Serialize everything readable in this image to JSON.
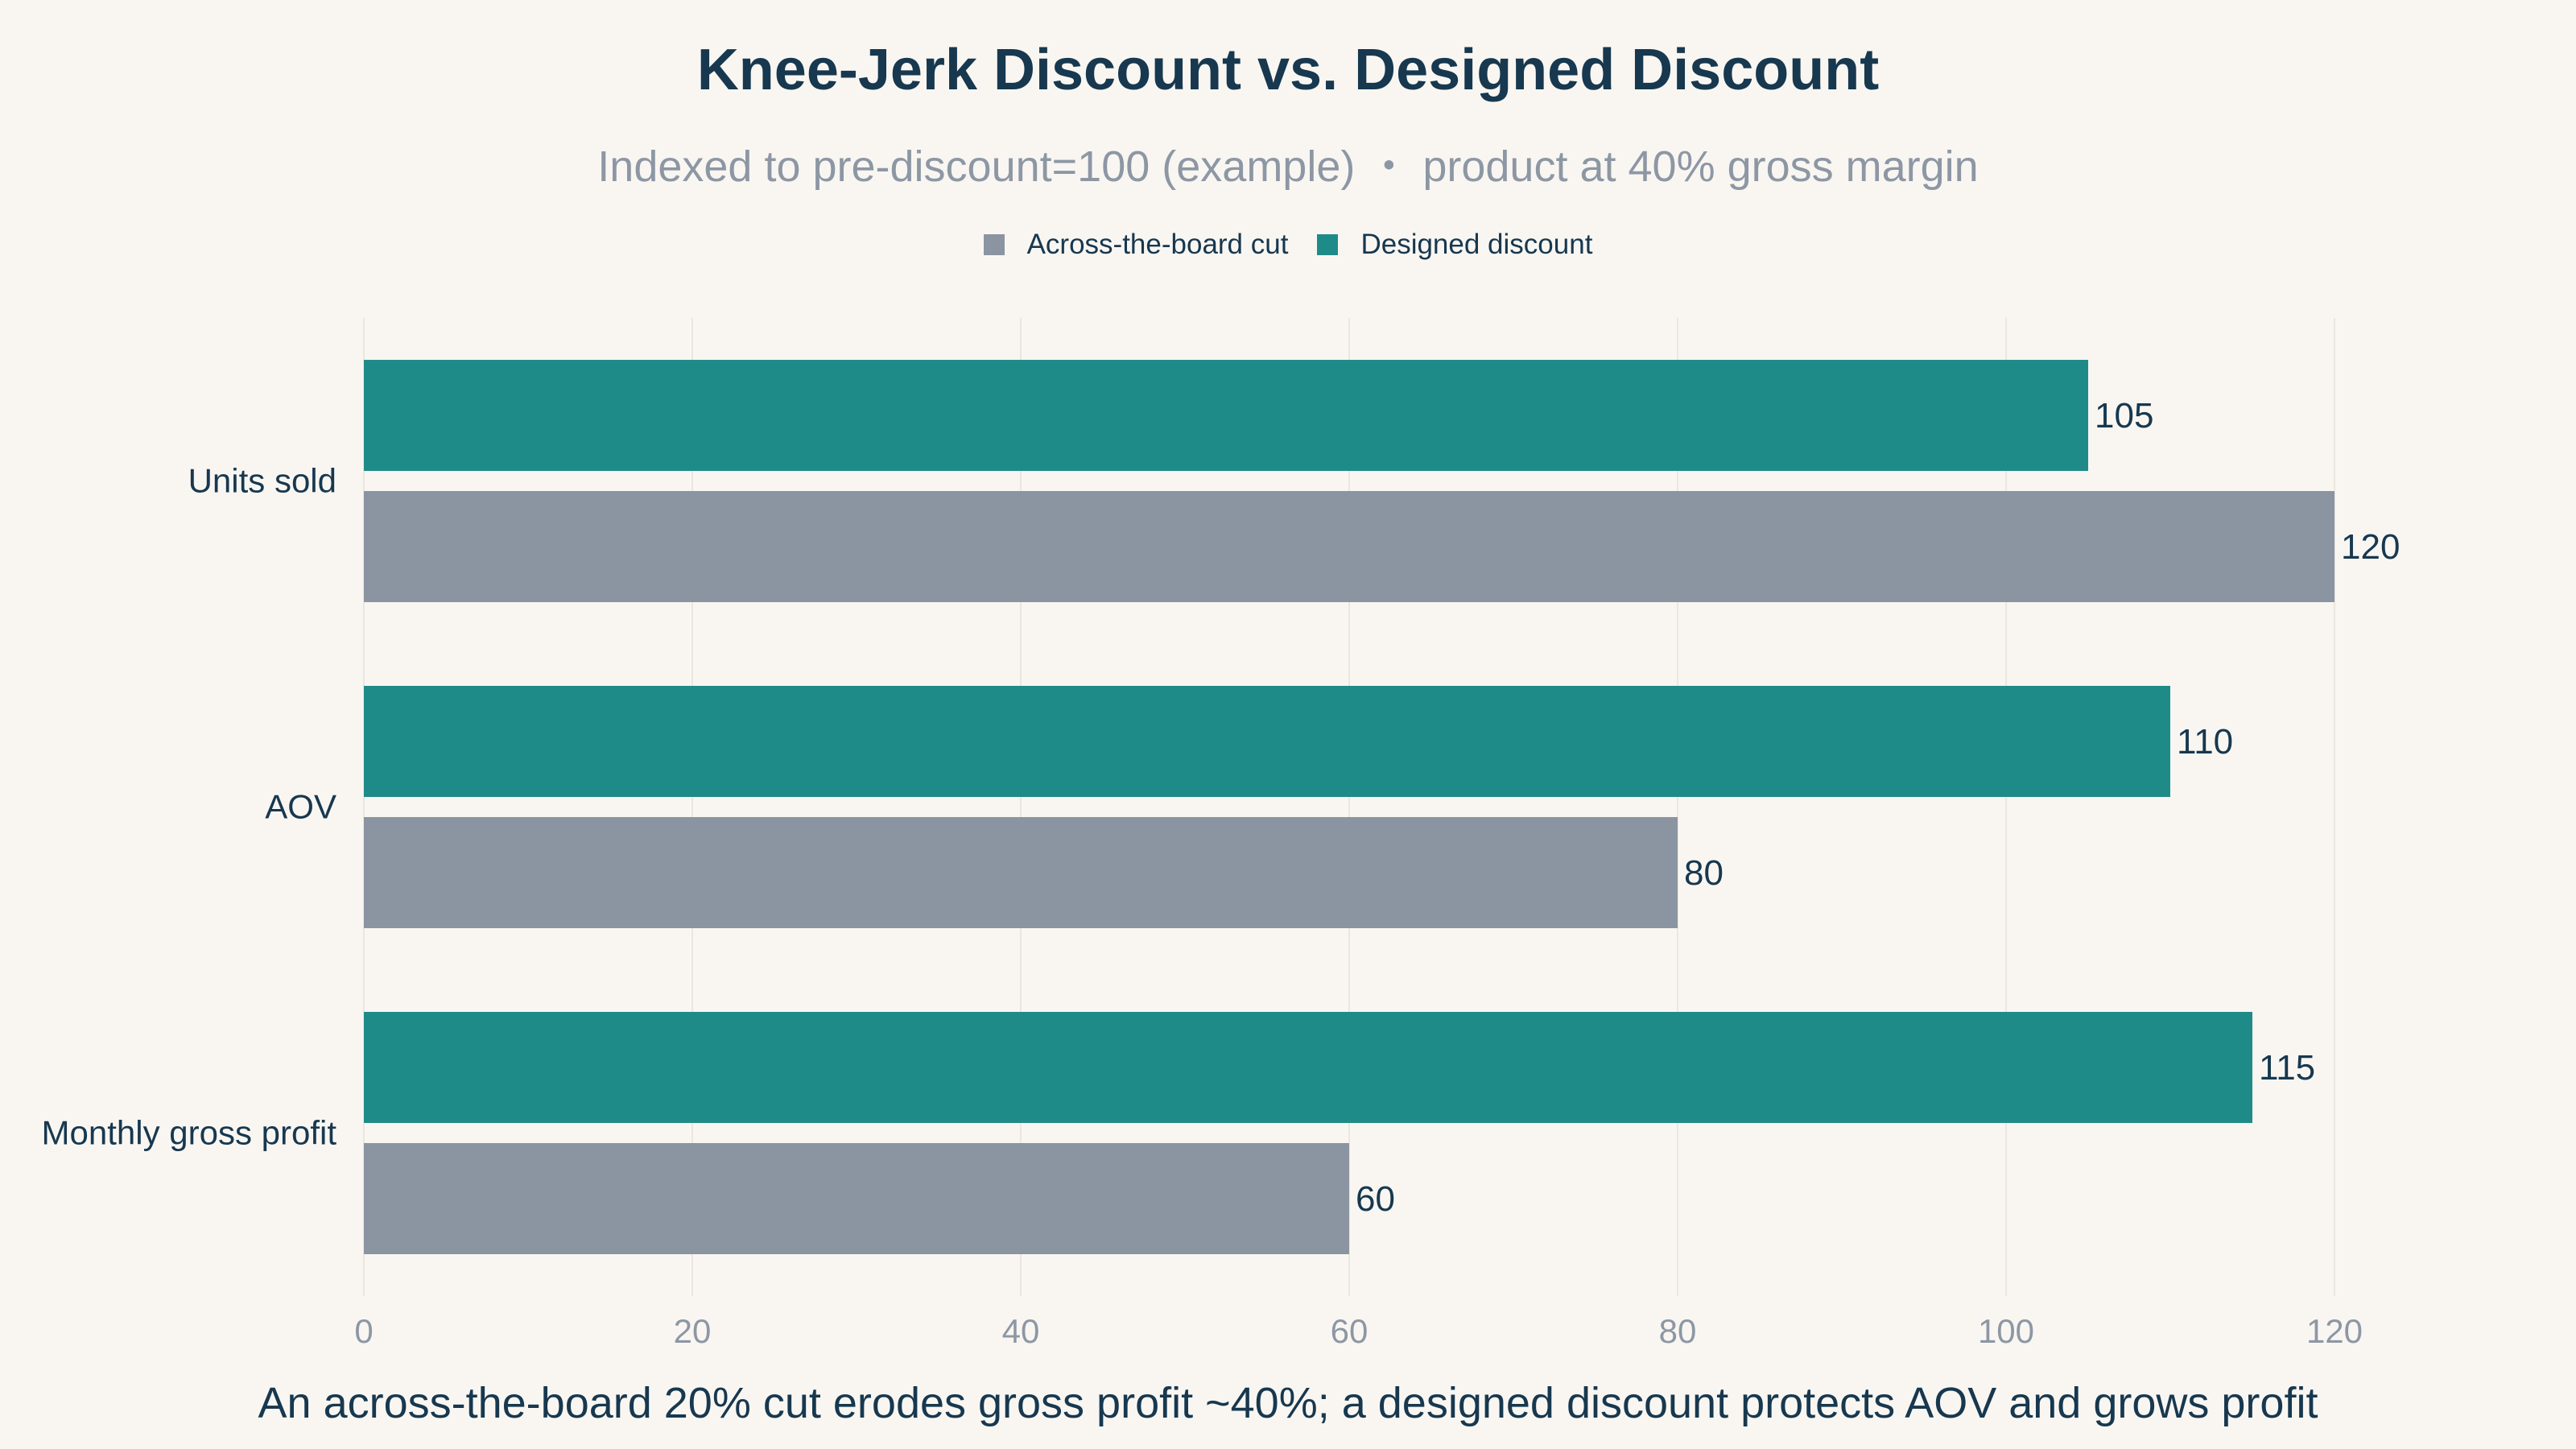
{
  "chart_data": {
    "type": "bar",
    "orientation": "horizontal",
    "title": "Knee-Jerk Discount vs. Designed Discount",
    "subtitle": "Indexed to pre-discount=100 (example) ・ product at 40% gross margin",
    "caption": "An across-the-board 20% cut erodes gross profit ~40%; a designed discount protects AOV and grows profit",
    "categories": [
      "Units sold",
      "AOV",
      "Monthly gross profit"
    ],
    "series": [
      {
        "name": "Across-the-board cut",
        "color": "#8b94a1",
        "values": [
          120,
          80,
          60
        ]
      },
      {
        "name": "Designed discount",
        "color": "#1f8b89",
        "values": [
          105,
          110,
          115
        ]
      }
    ],
    "xlim": [
      0,
      125
    ],
    "xticks": [
      0,
      20,
      40,
      60,
      80,
      100,
      120
    ],
    "grid": true,
    "legend_position": "top-center"
  }
}
